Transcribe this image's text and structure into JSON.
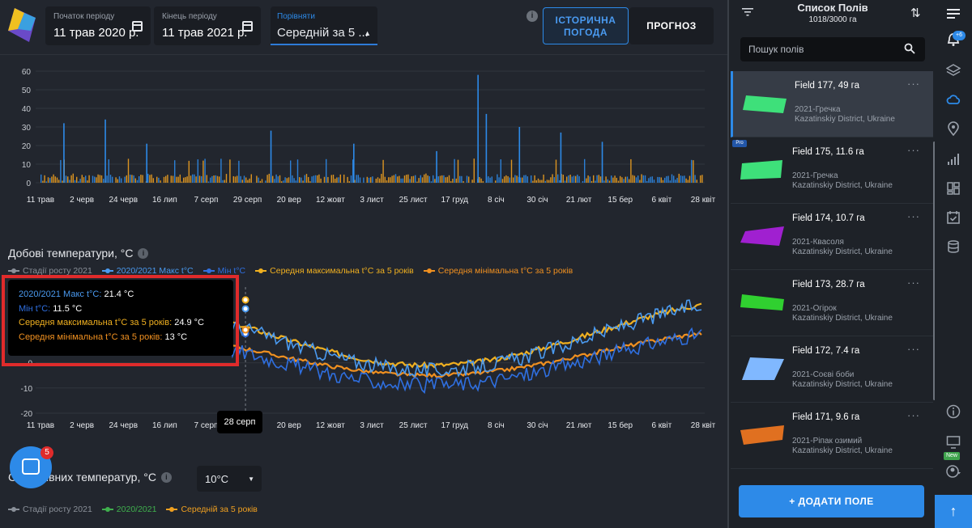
{
  "header": {
    "period_start": {
      "label": "Початок періоду",
      "value": "11 трав 2020 р."
    },
    "period_end": {
      "label": "Кінець періоду",
      "value": "11 трав 2021 р."
    },
    "compare": {
      "label": "Порівняти",
      "value": "Середній за 5 ..."
    },
    "tabs": {
      "historical": "ІСТОРИЧНА ПОГОДА",
      "forecast": "ПРОГНОЗ"
    },
    "info_glyph": "i"
  },
  "axis": {
    "months": [
      "11 трав",
      "2 черв",
      "24 черв",
      "16 лип",
      "7 серп",
      "29 серп",
      "20 вер",
      "12 жовт",
      "3 лист",
      "25 лист",
      "17 груд",
      "8 січ",
      "30 січ",
      "21 лют",
      "15 бер",
      "6 квіт",
      "28 квіт"
    ]
  },
  "chart_data": [
    {
      "type": "bar",
      "title": "",
      "ylim": [
        0,
        60
      ],
      "yticks": [
        "60",
        "50",
        "40",
        "30",
        "20",
        "10",
        "0"
      ],
      "notable_peaks": [
        {
          "near": "11 трав",
          "value": 32
        },
        {
          "near": "2 черв",
          "value": 34
        },
        {
          "near": "24 черв",
          "value": 21
        },
        {
          "near": "29 серп",
          "value": 28
        },
        {
          "near": "12 жовт",
          "value": 21
        },
        {
          "near": "25 лист",
          "value": 17
        },
        {
          "near": "17 груд",
          "value": 58
        },
        {
          "near": "17 груд",
          "value": 37
        },
        {
          "near": "8 січ",
          "value": 30
        },
        {
          "near": "30 січ",
          "value": 27
        },
        {
          "near": "21 лют",
          "value": 22
        },
        {
          "near": "28 квіт",
          "value": 17
        }
      ],
      "colors": {
        "current": "#2d8ae8",
        "average": "#f0a020"
      }
    },
    {
      "type": "line",
      "title": "Добові температури, °C",
      "ylim": [
        -20,
        30
      ],
      "yticks": [
        "-10",
        "-20"
      ],
      "zero_tick": "0",
      "series": [
        {
          "name": "Стадії росту 2021",
          "color": "#8a9099"
        },
        {
          "name": "2020/2021 Макс t°C",
          "color": "#4a9af0"
        },
        {
          "name": "Мін t°C",
          "color": "#2f6fe0"
        },
        {
          "name": "Середня максимальна t°C за 5 років",
          "color": "#f0b020"
        },
        {
          "name": "Середня мінімальна t°C за 5 років",
          "color": "#f09020"
        }
      ],
      "tooltip": {
        "date": "28 серп",
        "rows": [
          {
            "label": "2020/2021 Макс t°C:",
            "value": "21.4 °C",
            "color": "#4a9af0"
          },
          {
            "label": "Мін t°C:",
            "value": "11.5 °C",
            "color": "#2f6fe0"
          },
          {
            "label": "Середня максимальна t°C за 5 років:",
            "value": "24.9 °C",
            "color": "#f0b020"
          },
          {
            "label": "Середня мінімальна t°C за 5 років:",
            "value": "13 °C",
            "color": "#f09020"
          }
        ]
      }
    }
  ],
  "section2": {
    "title": "Сума ефективних температур, °C",
    "visible_title": "С     ктивних температур, °C",
    "select_value": "10°C",
    "legend": [
      {
        "name": "Стадії росту 2021",
        "color": "#8a9099"
      },
      {
        "name": "2020/2021",
        "color": "#3fb04d"
      },
      {
        "name": "Середній за 5 років",
        "color": "#f0a020"
      }
    ]
  },
  "chat": {
    "badge": "5"
  },
  "fields_panel": {
    "title": "Список Полів",
    "count": "1018/3000 га",
    "search_placeholder": "Пошук полів",
    "pro_label": "Pro",
    "add_button": "+  ДОДАТИ ПОЛЕ",
    "more_glyph": "···",
    "fields": [
      {
        "name": "Field 177, 49 га",
        "crop": "2021-Гречка",
        "location": "Kazatinskiy District, Ukraine",
        "color": "#3ee07a"
      },
      {
        "name": "Field 175, 11.6 га",
        "crop": "2021-Гречка",
        "location": "Kazatinskiy District, Ukraine",
        "color": "#3ee07a"
      },
      {
        "name": "Field 174, 10.7 га",
        "crop": "2021-Квасоля",
        "location": "Kazatinskiy District, Ukraine",
        "color": "#a020d0"
      },
      {
        "name": "Field 173, 28.7 га",
        "crop": "2021-Огірок",
        "location": "Kazatinskiy District, Ukraine",
        "color": "#30d030"
      },
      {
        "name": "Field 172, 7.4 га",
        "crop": "2021-Соєві боби",
        "location": "Kazatinskiy District, Ukraine",
        "color": "#80b8ff"
      },
      {
        "name": "Field 171, 9.6 га",
        "crop": "2021-Ріпак озимий",
        "location": "Kazatinskiy District, Ukraine",
        "color": "#e07020"
      }
    ]
  },
  "rail": {
    "notif_badge": "+6",
    "new_badge": "New",
    "up_glyph": "↑"
  }
}
